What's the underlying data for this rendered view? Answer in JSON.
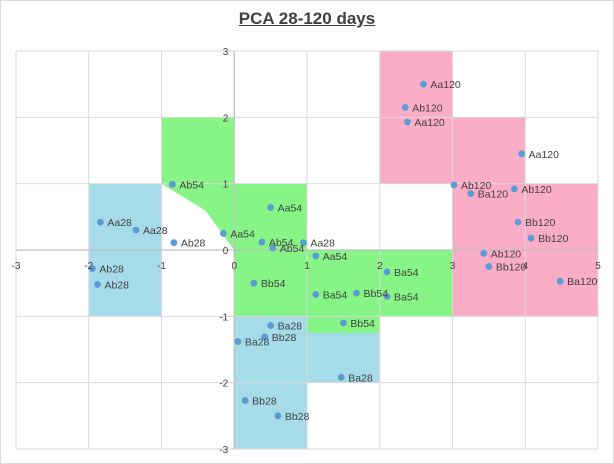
{
  "chart_data": {
    "type": "scatter",
    "title": "PCA 28-120 days",
    "xlim": [
      -3,
      5
    ],
    "ylim": [
      -3,
      3
    ],
    "x_ticks": [
      "-3",
      "-2",
      "-1",
      "0",
      "1",
      "2",
      "3",
      "4",
      "5"
    ],
    "y_ticks": [
      "3",
      "2",
      "1",
      "0",
      "-1",
      "-2",
      "-3"
    ],
    "grid": true,
    "colors": {
      "series_28": "#a6dcea",
      "series_54": "#86f586",
      "series_120": "#fbadc8",
      "marker": "#5b9bd5",
      "grid": "#d9d9d9",
      "axis": "#bfbfbf"
    },
    "regions": [
      {
        "group": "28",
        "polygon": [
          [
            -2,
            1
          ],
          [
            -1,
            1
          ],
          [
            -1,
            -1
          ],
          [
            -2,
            -1
          ]
        ]
      },
      {
        "group": "28",
        "polygon": [
          [
            0,
            -1
          ],
          [
            2,
            -1
          ],
          [
            2,
            -2
          ],
          [
            1,
            -2
          ],
          [
            1,
            -3
          ],
          [
            0,
            -3
          ]
        ]
      },
      {
        "group": "54",
        "polygon": [
          [
            -1,
            2
          ],
          [
            0,
            2
          ],
          [
            0,
            1
          ],
          [
            1,
            1
          ],
          [
            1,
            0
          ],
          [
            3,
            0
          ],
          [
            3,
            -1
          ],
          [
            2,
            -1
          ],
          [
            2,
            -1.25
          ],
          [
            1,
            -1.25
          ],
          [
            1,
            -1
          ],
          [
            0,
            -1
          ],
          [
            0,
            0
          ],
          [
            -0.4,
            0.6
          ],
          [
            -1,
            1
          ]
        ]
      },
      {
        "group": "120",
        "polygon": [
          [
            2,
            3
          ],
          [
            3,
            3
          ],
          [
            3,
            2
          ],
          [
            4,
            2
          ],
          [
            4,
            1
          ],
          [
            5,
            1
          ],
          [
            5,
            -1
          ],
          [
            3,
            -1
          ],
          [
            3,
            1
          ],
          [
            2,
            1
          ]
        ]
      }
    ],
    "points": [
      {
        "label": "Aa120",
        "x": 2.6,
        "y": 2.5
      },
      {
        "label": "Ab120",
        "x": 2.35,
        "y": 2.15
      },
      {
        "label": "Aa120",
        "x": 2.38,
        "y": 1.93
      },
      {
        "label": "Aa120",
        "x": 3.95,
        "y": 1.45
      },
      {
        "label": "Ab120",
        "x": 3.02,
        "y": 0.98
      },
      {
        "label": "Ab120",
        "x": 3.85,
        "y": 0.92
      },
      {
        "label": "Ba120",
        "x": 3.25,
        "y": 0.85
      },
      {
        "label": "Bb120",
        "x": 3.9,
        "y": 0.42
      },
      {
        "label": "Bb120",
        "x": 4.08,
        "y": 0.18
      },
      {
        "label": "Ab120",
        "x": 3.43,
        "y": -0.05
      },
      {
        "label": "Bb120",
        "x": 3.5,
        "y": -0.25
      },
      {
        "label": "Ba120",
        "x": 4.48,
        "y": -0.47
      },
      {
        "label": "Aa54",
        "x": 0.5,
        "y": 0.64
      },
      {
        "label": "Aa54",
        "x": -0.15,
        "y": 0.25
      },
      {
        "label": "Ab54",
        "x": -0.85,
        "y": 0.99
      },
      {
        "label": "Ab54",
        "x": 0.38,
        "y": 0.12
      },
      {
        "label": "Ab54",
        "x": 0.53,
        "y": 0.03
      },
      {
        "label": "Aa28",
        "x": 0.95,
        "y": 0.11
      },
      {
        "label": "Aa54",
        "x": 1.12,
        "y": -0.09
      },
      {
        "label": "Bb54",
        "x": 0.27,
        "y": -0.5
      },
      {
        "label": "Ba54",
        "x": 2.1,
        "y": -0.33
      },
      {
        "label": "Ba54",
        "x": 1.12,
        "y": -0.67
      },
      {
        "label": "Bb54",
        "x": 1.68,
        "y": -0.65
      },
      {
        "label": "Ba54",
        "x": 2.1,
        "y": -0.7
      },
      {
        "label": "Bb54",
        "x": 1.5,
        "y": -1.1
      },
      {
        "label": "Aa28",
        "x": -1.84,
        "y": 0.42
      },
      {
        "label": "Aa28",
        "x": -1.35,
        "y": 0.3
      },
      {
        "label": "Ab28",
        "x": -0.83,
        "y": 0.11
      },
      {
        "label": "Ab28",
        "x": -1.95,
        "y": -0.28
      },
      {
        "label": "Ab28",
        "x": -1.88,
        "y": -0.52
      },
      {
        "label": "Ba28",
        "x": 0.5,
        "y": -1.14
      },
      {
        "label": "Bb28",
        "x": 0.42,
        "y": -1.31
      },
      {
        "label": "Ba28",
        "x": 0.05,
        "y": -1.38
      },
      {
        "label": "Ba28",
        "x": 1.47,
        "y": -1.92
      },
      {
        "label": "Bb28",
        "x": 0.15,
        "y": -2.27
      },
      {
        "label": "Bb28",
        "x": 0.6,
        "y": -2.5
      }
    ]
  }
}
